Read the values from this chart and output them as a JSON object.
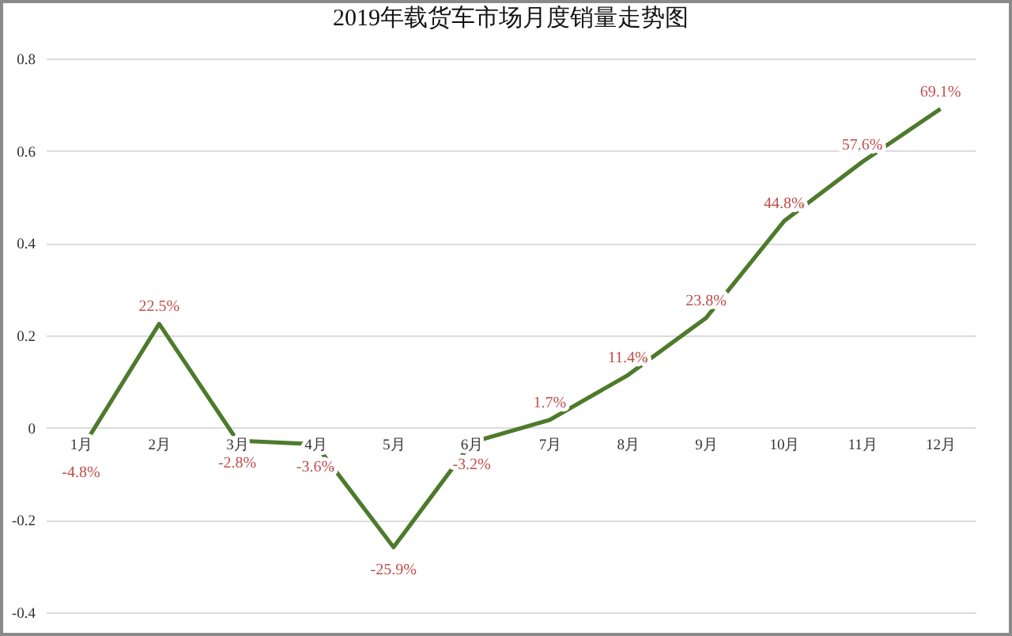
{
  "chart_data": {
    "type": "line",
    "title": "2019年载货车市场月度销量走势图",
    "categories": [
      "1月",
      "2月",
      "3月",
      "4月",
      "5月",
      "6月",
      "7月",
      "8月",
      "9月",
      "10月",
      "11月",
      "12月"
    ],
    "series": [
      {
        "color": "#4e7a2c",
        "values": [
          -0.048,
          0.225,
          -0.028,
          -0.036,
          -0.259,
          -0.032,
          0.017,
          0.114,
          0.238,
          0.448,
          0.576,
          0.691
        ],
        "value_labels": [
          "-4.8%",
          "22.5%",
          "-2.8%",
          "-3.6%",
          "-25.9%",
          "-3.2%",
          "1.7%",
          "11.4%",
          "23.8%",
          "44.8%",
          "57.6%",
          "69.1%"
        ]
      }
    ],
    "ylim": [
      -0.4,
      0.8
    ],
    "yticks": [
      -0.4,
      -0.2,
      0,
      0.2,
      0.4,
      0.6,
      0.8
    ],
    "grid": "y"
  }
}
